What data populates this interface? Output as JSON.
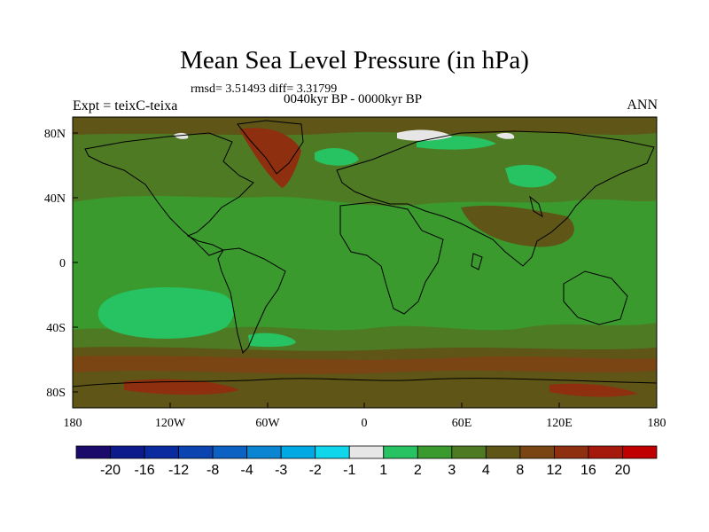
{
  "title": "Mean Sea Level Pressure (in hPa)",
  "stats": "rmsd= 3.51493 diff= 3.31799",
  "subtitle": "0040kyr BP - 0000kyr BP",
  "left_label": "Expt = teixC-teixa",
  "right_label": "ANN",
  "y_ticks": [
    "80N",
    "40N",
    "0",
    "40S",
    "80S"
  ],
  "x_ticks": [
    "180",
    "120W",
    "60W",
    "0",
    "60E",
    "120E",
    "180"
  ],
  "colorbar": {
    "labels": [
      "-20",
      "-16",
      "-12",
      "-8",
      "-4",
      "-3",
      "-2",
      "-1",
      "1",
      "2",
      "3",
      "4",
      "8",
      "12",
      "16",
      "20"
    ],
    "colors": [
      "#1c0a6a",
      "#0c1a8c",
      "#0a2aa0",
      "#0b43b0",
      "#0c62c2",
      "#0a85d2",
      "#00a8e4",
      "#10d6ec",
      "#e6e6e6",
      "#27c261",
      "#3a9a2e",
      "#4f7a24",
      "#5e5516",
      "#7a4512",
      "#8e3010",
      "#a5190c",
      "#c00000"
    ]
  },
  "chart_data": {
    "type": "heatmap",
    "title": "Mean Sea Level Pressure (in hPa)",
    "subtitle": "0040kyr BP - 0000kyr BP",
    "experiment": "Expt = teixC-teixa",
    "season": "ANN",
    "rmsd": 3.51493,
    "diff": 3.31799,
    "xlim": [
      -180,
      180
    ],
    "ylim": [
      -90,
      90
    ],
    "x_ticks": [
      "180",
      "120W",
      "60W",
      "0",
      "60E",
      "120E",
      "180"
    ],
    "y_ticks": [
      "80N",
      "40N",
      "0",
      "40S",
      "80S"
    ],
    "levels": [
      -20,
      -16,
      -12,
      -8,
      -4,
      -3,
      -2,
      -1,
      1,
      2,
      3,
      4,
      8,
      12,
      16,
      20
    ],
    "dominant_range": [
      3,
      4
    ]
  }
}
